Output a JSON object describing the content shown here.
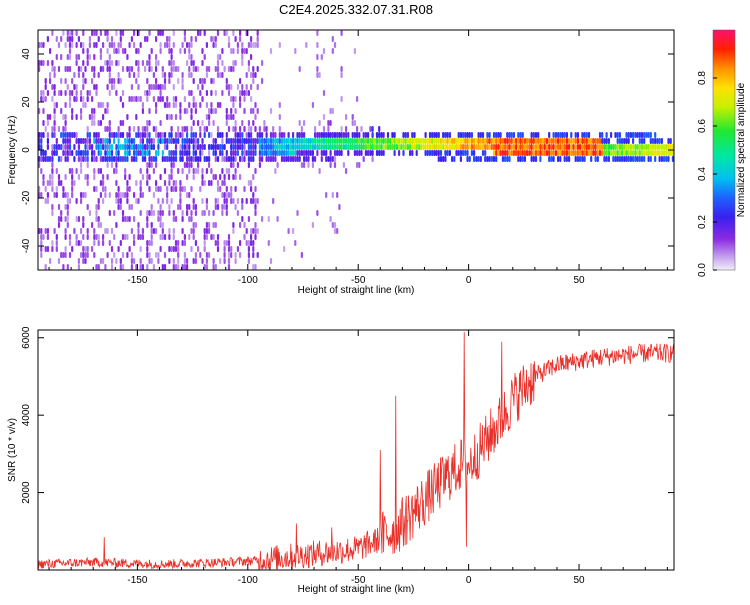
{
  "title": "C2E4.2025.332.07.31.R08",
  "chart_data": [
    {
      "type": "heatmap",
      "xlabel": "Height of straight line (km)",
      "ylabel": "Frequency (Hz)",
      "xlim": [
        -195,
        93
      ],
      "ylim": [
        -50,
        50
      ],
      "xticks": [
        -150,
        -100,
        -50,
        0,
        50
      ],
      "yticks": [
        -40,
        -20,
        0,
        20,
        40
      ],
      "colorbar": {
        "label": "Normalized spectral amplitude",
        "range": [
          0,
          1
        ],
        "ticks": [
          0.0,
          0.2,
          0.4,
          0.6,
          0.8
        ]
      },
      "description": "spectrogram: broad noise below -95 km, concentrated band near 0 Hz with rising amplitude toward +90 km"
    },
    {
      "type": "line",
      "xlabel": "Height of straight line (km)",
      "ylabel": "SNR (10 * v/v)",
      "xlim": [
        -195,
        93
      ],
      "ylim": [
        0,
        6200
      ],
      "xticks": [
        -150,
        -100,
        -50,
        0,
        50
      ],
      "yticks": [
        2000,
        4000,
        6000
      ],
      "color": "#e8302a",
      "profile_x": [
        -195,
        -170,
        -140,
        -110,
        -95,
        -80,
        -65,
        -50,
        -40,
        -30,
        -20,
        -10,
        -2,
        0,
        5,
        10,
        15,
        20,
        30,
        40,
        50,
        60,
        70,
        80,
        93
      ],
      "profile_y": [
        150,
        200,
        150,
        200,
        250,
        350,
        450,
        550,
        800,
        1200,
        1800,
        2400,
        2800,
        2700,
        3100,
        3500,
        3900,
        4400,
        5000,
        5300,
        5400,
        5500,
        5550,
        5600,
        5600
      ],
      "spikes": [
        {
          "x": -165,
          "y": 850
        },
        {
          "x": -78,
          "y": 1200
        },
        {
          "x": -62,
          "y": 1100
        },
        {
          "x": -40,
          "y": 3100
        },
        {
          "x": -33,
          "y": 4500
        },
        {
          "x": -2,
          "y": 6150
        },
        {
          "x": -1,
          "y": 600
        },
        {
          "x": 15,
          "y": 5900
        }
      ]
    }
  ]
}
